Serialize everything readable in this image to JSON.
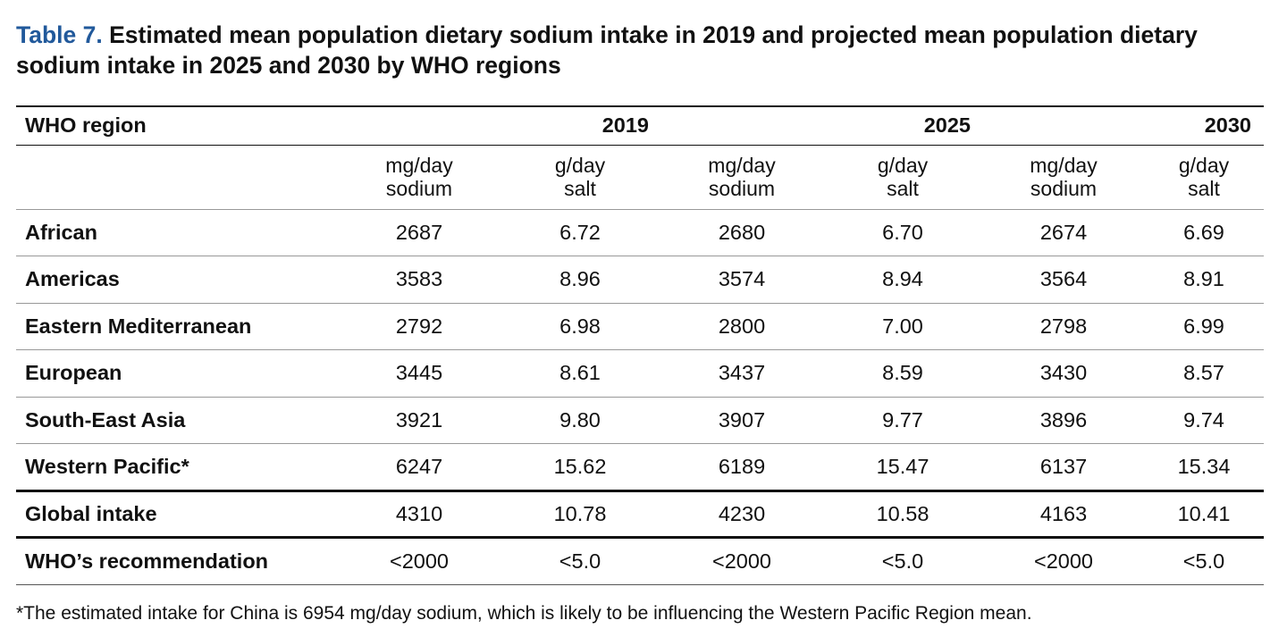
{
  "caption": {
    "label": "Table 7.",
    "text": "Estimated mean population dietary sodium intake in 2019 and projected mean population dietary sodium intake in 2025 and 2030 by WHO regions"
  },
  "table": {
    "region_header": "WHO region",
    "years": [
      "2019",
      "2025",
      "2030"
    ],
    "units": {
      "sodium": [
        "mg/day",
        "sodium"
      ],
      "salt": [
        "g/day",
        "salt"
      ]
    },
    "rows": [
      {
        "region": "African",
        "values": [
          "2687",
          "6.72",
          "2680",
          "6.70",
          "2674",
          "6.69"
        ]
      },
      {
        "region": "Americas",
        "values": [
          "3583",
          "8.96",
          "3574",
          "8.94",
          "3564",
          "8.91"
        ]
      },
      {
        "region": "Eastern Mediterranean",
        "values": [
          "2792",
          "6.98",
          "2800",
          "7.00",
          "2798",
          "6.99"
        ]
      },
      {
        "region": "European",
        "values": [
          "3445",
          "8.61",
          "3437",
          "8.59",
          "3430",
          "8.57"
        ]
      },
      {
        "region": "South-East Asia",
        "values": [
          "3921",
          "9.80",
          "3907",
          "9.77",
          "3896",
          "9.74"
        ]
      },
      {
        "region": "Western Pacific*",
        "values": [
          "6247",
          "15.62",
          "6189",
          "15.47",
          "6137",
          "15.34"
        ]
      },
      {
        "region": "Global intake",
        "values": [
          "4310",
          "10.78",
          "4230",
          "10.58",
          "4163",
          "10.41"
        ]
      },
      {
        "region": "WHO’s recommendation",
        "values": [
          "<2000",
          "<5.0",
          "<2000",
          "<5.0",
          "<2000",
          "<5.0"
        ]
      }
    ]
  },
  "footnote": "*The estimated intake for China is 6954 mg/day sodium, which is likely to be influencing the Western Pacific Region mean.",
  "colors": {
    "caption_label": "#21599b",
    "text": "#111111",
    "rule": "#111111"
  }
}
